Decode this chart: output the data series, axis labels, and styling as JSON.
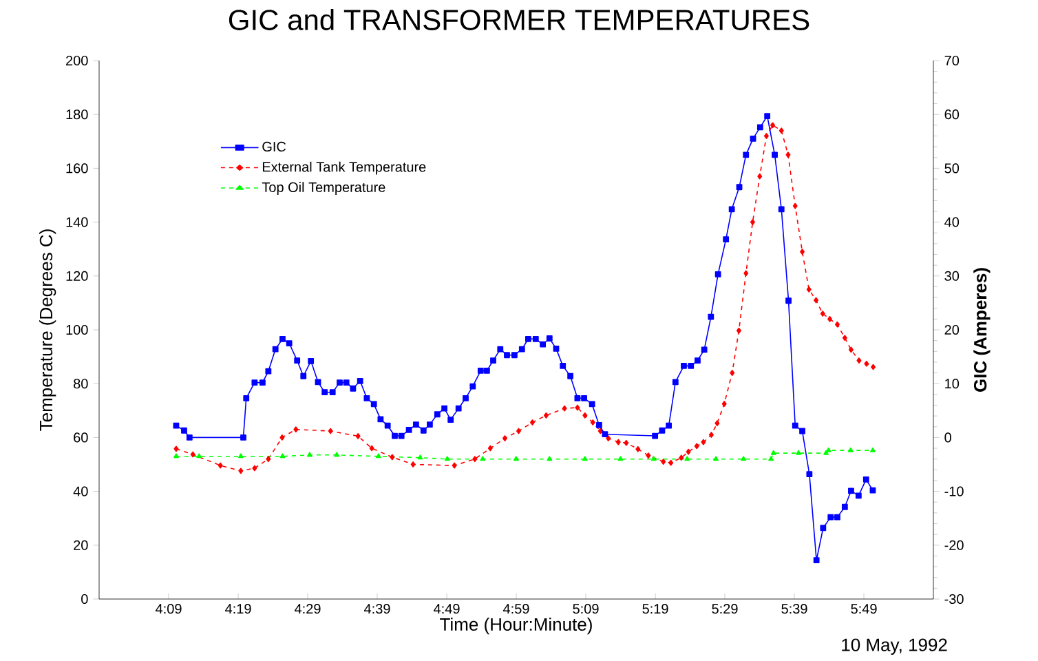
{
  "chart_data": {
    "type": "line",
    "title": "GIC and TRANSFORMER TEMPERATURES",
    "xlabel": "Time (Hour:Minute)",
    "ylabel": "Temperature (Degrees C)",
    "y2label": "GIC (Amperes)",
    "annotations": [
      "10 May, 1992"
    ],
    "xlim": [
      3.9833,
      5.9833
    ],
    "xticks": [
      {
        "value": 4.15,
        "label": "4:09"
      },
      {
        "value": 4.3167,
        "label": "4:19"
      },
      {
        "value": 4.4833,
        "label": "4:29"
      },
      {
        "value": 4.65,
        "label": "4:39"
      },
      {
        "value": 4.8167,
        "label": "4:49"
      },
      {
        "value": 4.9833,
        "label": "4:59"
      },
      {
        "value": 5.15,
        "label": "5:09"
      },
      {
        "value": 5.3167,
        "label": "5:19"
      },
      {
        "value": 5.4833,
        "label": "5:29"
      },
      {
        "value": 5.65,
        "label": "5:39"
      },
      {
        "value": 5.8167,
        "label": "5:49"
      }
    ],
    "ylim": [
      0,
      200
    ],
    "yticks": [
      0,
      20,
      40,
      60,
      80,
      100,
      120,
      140,
      160,
      180,
      200
    ],
    "y2lim": [
      -30,
      70
    ],
    "y2ticks": [
      -30,
      -20,
      -10,
      0,
      10,
      20,
      30,
      40,
      50,
      60,
      70
    ],
    "grid": false,
    "legend": "top left",
    "series": [
      {
        "name": "GIC",
        "color": "#0000ff",
        "axis": "y2",
        "marker": "square",
        "line_style": "solid",
        "x": [
          4.168,
          4.187,
          4.2,
          4.329,
          4.336,
          4.356,
          4.375,
          4.389,
          4.406,
          4.423,
          4.439,
          4.458,
          4.473,
          4.491,
          4.508,
          4.524,
          4.543,
          4.56,
          4.576,
          4.592,
          4.609,
          4.625,
          4.642,
          4.658,
          4.675,
          4.692,
          4.708,
          4.726,
          4.743,
          4.761,
          4.776,
          4.794,
          4.811,
          4.826,
          4.845,
          4.862,
          4.879,
          4.898,
          4.913,
          4.928,
          4.945,
          4.961,
          4.979,
          4.997,
          5.012,
          5.03,
          5.047,
          5.063,
          5.079,
          5.095,
          5.113,
          5.13,
          5.146,
          5.165,
          5.182,
          5.196,
          5.316,
          5.333,
          5.349,
          5.365,
          5.385,
          5.402,
          5.418,
          5.434,
          5.45,
          5.467,
          5.486,
          5.5,
          5.518,
          5.534,
          5.551,
          5.568,
          5.585,
          5.603,
          5.619,
          5.636,
          5.652,
          5.669,
          5.686,
          5.703,
          5.719,
          5.737,
          5.753,
          5.771,
          5.786,
          5.804,
          5.822,
          5.838
        ],
        "values": [
          2.2,
          1.3,
          0,
          0,
          7.3,
          10.2,
          10.2,
          12.3,
          16.4,
          18.3,
          17.5,
          14.3,
          11.4,
          14.2,
          10.3,
          8.4,
          8.4,
          10.2,
          10.2,
          9.1,
          10.5,
          7.3,
          6.2,
          3.4,
          2.2,
          0.3,
          0.3,
          1.4,
          2.4,
          1.3,
          2.4,
          4.3,
          5.4,
          3.3,
          5.4,
          7.3,
          9.5,
          12.4,
          12.4,
          14.3,
          16.4,
          15.3,
          15.3,
          16.4,
          18.3,
          18.3,
          17.3,
          18.4,
          16.5,
          13.3,
          11.4,
          7.3,
          7.3,
          6.2,
          2.3,
          0.6,
          0.3,
          1.3,
          2.2,
          10.3,
          13.3,
          13.3,
          14.3,
          16.3,
          22.4,
          30.3,
          36.8,
          42.4,
          46.5,
          52.5,
          55.5,
          57.6,
          59.7,
          52.5,
          42.4,
          25.4,
          2.2,
          1.2,
          -6.8,
          -22.8,
          -16.8,
          -14.8,
          -14.8,
          -12.9,
          -9.9,
          -10.8,
          -7.8,
          -9.8
        ]
      },
      {
        "name": "External Tank Temperature",
        "color": "#ff0000",
        "axis": "y",
        "marker": "diamond",
        "line_style": "dashed",
        "x": [
          4.168,
          4.208,
          4.274,
          4.323,
          4.356,
          4.389,
          4.422,
          4.455,
          4.538,
          4.604,
          4.637,
          4.686,
          4.736,
          4.835,
          4.884,
          4.921,
          4.956,
          4.989,
          5.022,
          5.055,
          5.099,
          5.13,
          5.148,
          5.167,
          5.185,
          5.204,
          5.228,
          5.247,
          5.275,
          5.3,
          5.336,
          5.354,
          5.379,
          5.396,
          5.416,
          5.432,
          5.451,
          5.465,
          5.482,
          5.501,
          5.517,
          5.534,
          5.55,
          5.567,
          5.583,
          5.598,
          5.619,
          5.635,
          5.652,
          5.669,
          5.685,
          5.702,
          5.718,
          5.735,
          5.753,
          5.771,
          5.786,
          5.805,
          5.823,
          5.839
        ],
        "values": [
          55.8,
          53.7,
          49.6,
          47.6,
          48.6,
          52,
          60,
          63,
          62.4,
          60.5,
          56,
          52.7,
          50,
          49.6,
          52,
          56,
          59.7,
          62.4,
          65.6,
          68.2,
          70.8,
          71.1,
          68.2,
          65.6,
          62.4,
          59.7,
          58.3,
          58,
          55.7,
          53.3,
          51,
          50.6,
          52.5,
          54.7,
          56.8,
          58.3,
          61,
          65.3,
          72.5,
          84,
          99.7,
          121,
          140,
          157,
          172,
          176,
          174,
          165,
          146,
          129,
          115,
          111,
          106,
          104,
          102,
          97,
          92.6,
          88.6,
          87.4,
          86.2
        ]
      },
      {
        "name": "Top Oil Temperature",
        "color": "#00ff00",
        "axis": "y",
        "marker": "triangle",
        "line_style": "dashed",
        "x": [
          4.168,
          4.223,
          4.323,
          4.423,
          4.488,
          4.553,
          4.653,
          4.753,
          4.818,
          4.903,
          4.983,
          5.063,
          5.148,
          5.233,
          5.313,
          5.393,
          5.462,
          5.528,
          5.594,
          5.6,
          5.66,
          5.726,
          5.732,
          5.785,
          5.838
        ],
        "values": [
          53,
          53,
          53,
          53,
          53.5,
          53.5,
          53,
          52.5,
          52,
          52,
          52,
          52,
          52,
          52,
          52,
          52,
          52,
          52,
          52,
          54.2,
          54.2,
          54.2,
          55.2,
          55.2,
          55.2
        ]
      }
    ]
  }
}
